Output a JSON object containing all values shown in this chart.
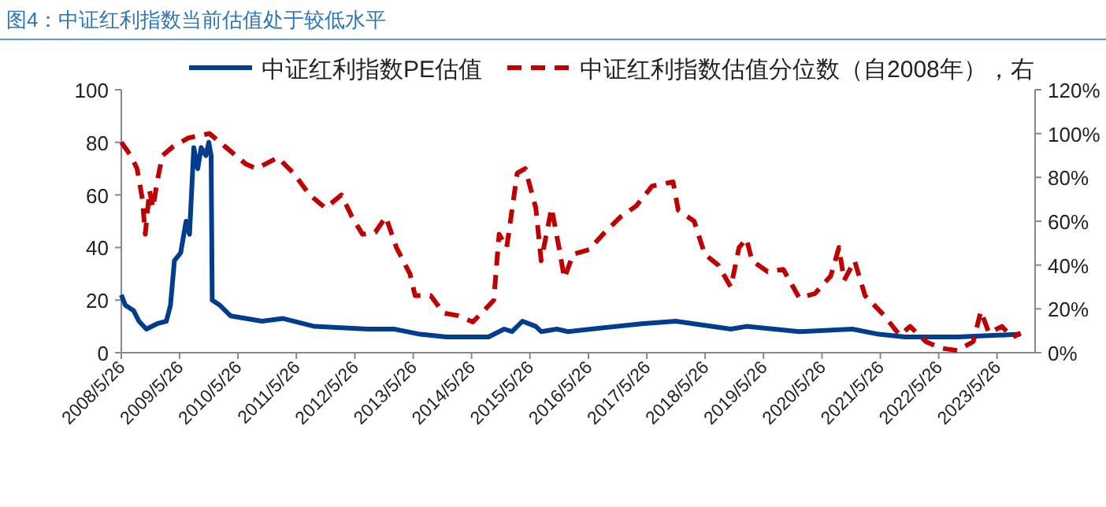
{
  "chart_data": {
    "type": "line",
    "title": "图4：中证红利指数当前估值处于较低水平",
    "legend": "top",
    "grid": false,
    "marker": "none",
    "xlim": [
      "2008-05-26",
      "2024-01-19"
    ],
    "xticks": [
      {
        "value": "2008-05-26",
        "label": "2008/5/26"
      },
      {
        "value": "2009-05-26",
        "label": "2009/5/26"
      },
      {
        "value": "2010-05-26",
        "label": "2010/5/26"
      },
      {
        "value": "2011-05-26",
        "label": "2011/5/26"
      },
      {
        "value": "2012-05-26",
        "label": "2012/5/26"
      },
      {
        "value": "2013-05-26",
        "label": "2013/5/26"
      },
      {
        "value": "2014-05-26",
        "label": "2014/5/26"
      },
      {
        "value": "2015-05-26",
        "label": "2015/5/26"
      },
      {
        "value": "2016-05-26",
        "label": "2016/5/26"
      },
      {
        "value": "2017-05-26",
        "label": "2017/5/26"
      },
      {
        "value": "2018-05-26",
        "label": "2018/5/26"
      },
      {
        "value": "2019-05-26",
        "label": "2019/5/26"
      },
      {
        "value": "2020-05-26",
        "label": "2020/5/26"
      },
      {
        "value": "2021-05-26",
        "label": "2021/5/26"
      },
      {
        "value": "2022-05-26",
        "label": "2022/5/26"
      },
      {
        "value": "2023-05-26",
        "label": "2023/5/26"
      }
    ],
    "ylim": [
      0,
      100
    ],
    "yticks": [
      0,
      20,
      40,
      60,
      80,
      100
    ],
    "y2lim": [
      0,
      120
    ],
    "y2ticks": [
      {
        "value": 0,
        "label": "0%"
      },
      {
        "value": 20,
        "label": "20%"
      },
      {
        "value": 40,
        "label": "40%"
      },
      {
        "value": 60,
        "label": "60%"
      },
      {
        "value": 80,
        "label": "80%"
      },
      {
        "value": 100,
        "label": "100%"
      },
      {
        "value": 120,
        "label": "120%"
      }
    ],
    "series": [
      {
        "name": "中证红利指数PE估值",
        "color": "#003d8f",
        "line_style": "solid",
        "x": [
          "2008-05-26",
          "2008-06-21",
          "2008-08-11",
          "2008-09-13",
          "2008-10-30",
          "2009-01-05",
          "2009-03-04",
          "2009-03-29",
          "2009-04-23",
          "2009-06-02",
          "2009-07-05",
          "2009-07-27",
          "2009-08-22",
          "2009-09-16",
          "2009-10-08",
          "2009-11-06",
          "2009-11-24",
          "2009-12-09",
          "2009-12-16",
          "2010-02-02",
          "2010-04-09",
          "2010-10-23",
          "2011-03-04",
          "2011-09-16",
          "2012-08-11",
          "2013-01-26",
          "2013-07-09",
          "2013-12-20",
          "2014-09-09",
          "2014-12-16",
          "2015-02-03",
          "2015-04-09",
          "2015-07-02",
          "2015-08-04",
          "2015-11-10",
          "2016-01-19",
          "2017-04-23",
          "2017-11-24",
          "2018-11-03",
          "2019-02-09",
          "2020-01-05",
          "2020-12-02",
          "2021-05-16",
          "2021-10-27",
          "2022-09-20",
          "2023-10-20"
        ],
        "values": [
          22,
          18,
          16,
          12,
          9,
          11,
          12,
          18,
          35,
          38,
          50,
          45,
          78,
          70,
          78,
          75,
          80,
          75,
          20,
          18,
          14,
          12,
          13,
          10,
          9,
          9,
          7,
          6,
          6,
          9,
          8,
          12,
          10,
          8,
          9,
          8,
          11,
          12,
          9,
          10,
          8,
          9,
          7,
          6,
          6,
          7
        ]
      },
      {
        "name": "中证红利指数估值分位数（自2008年），右",
        "color": "#c00000",
        "line_style": "dashed",
        "axis": "y2",
        "x": [
          "2008-05-26",
          "2008-07-24",
          "2008-09-02",
          "2008-10-05",
          "2008-10-23",
          "2008-11-18",
          "2008-12-10",
          "2009-01-05",
          "2009-02-07",
          "2009-04-13",
          "2009-07-20",
          "2009-11-28",
          "2010-03-07",
          "2010-07-16",
          "2010-09-20",
          "2011-01-30",
          "2011-05-08",
          "2011-08-18",
          "2011-11-24",
          "2012-03-03",
          "2012-05-08",
          "2012-07-13",
          "2012-10-01",
          "2012-12-06",
          "2013-02-10",
          "2013-05-05",
          "2013-06-07",
          "2013-09-13",
          "2013-12-02",
          "2014-02-24",
          "2014-06-03",
          "2014-08-22",
          "2014-10-12",
          "2014-11-14",
          "2015-01-01",
          "2015-03-08",
          "2015-04-27",
          "2015-07-02",
          "2015-08-04",
          "2015-10-08",
          "2015-11-24",
          "2015-12-27",
          "2016-02-20",
          "2016-05-30",
          "2016-09-06",
          "2016-12-13",
          "2017-03-21",
          "2017-06-28",
          "2017-11-06",
          "2017-12-09",
          "2018-03-18",
          "2018-05-23",
          "2018-08-15",
          "2018-11-03",
          "2018-12-24",
          "2019-02-09",
          "2019-03-15",
          "2019-06-21",
          "2019-09-27",
          "2020-01-05",
          "2020-04-12",
          "2020-07-20",
          "2020-09-09",
          "2020-10-12",
          "2020-12-16",
          "2021-02-20",
          "2021-06-18",
          "2021-09-24",
          "2021-11-28",
          "2022-03-07",
          "2022-06-14",
          "2022-09-20",
          "2022-12-28",
          "2023-02-14",
          "2023-04-05",
          "2023-06-25",
          "2023-08-29",
          "2023-10-20"
        ],
        "values": [
          96,
          90,
          84,
          70,
          54,
          74,
          66,
          78,
          90,
          94,
          98,
          100,
          94,
          86,
          84,
          89,
          82,
          72,
          66,
          72,
          62,
          54,
          55,
          62,
          48,
          36,
          26,
          26,
          18,
          17,
          14,
          20,
          24,
          54,
          48,
          82,
          84,
          66,
          42,
          66,
          48,
          34,
          45,
          47,
          55,
          62,
          67,
          76,
          78,
          65,
          60,
          45,
          40,
          30,
          48,
          52,
          42,
          37,
          38,
          25,
          27,
          35,
          48,
          33,
          42,
          26,
          17,
          8,
          12,
          5,
          2,
          1,
          5,
          19,
          9,
          12,
          7,
          9
        ]
      }
    ]
  }
}
